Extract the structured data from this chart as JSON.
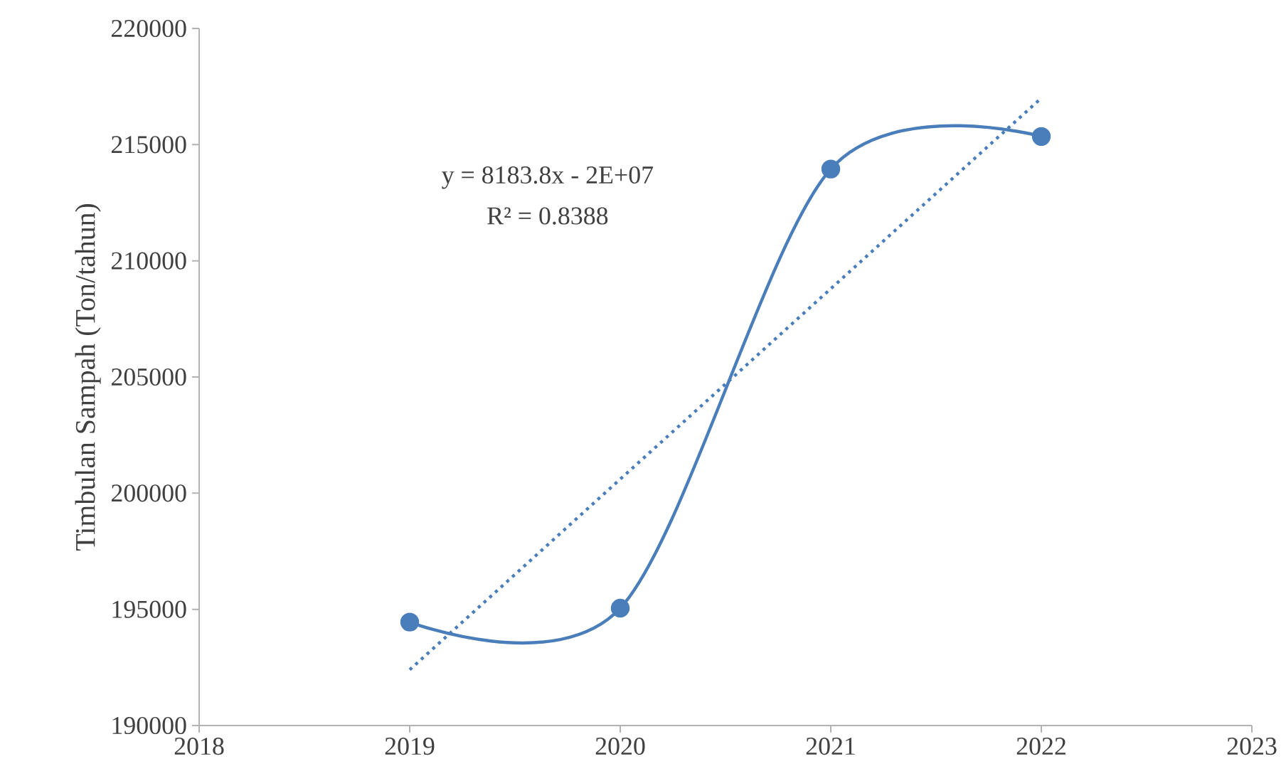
{
  "chart_data": {
    "type": "line",
    "ylabel": "Timbulan Sampah (Ton/tahun)",
    "annotations": [
      "y = 8183.8x - 2E+07",
      "R² = 0.8388"
    ],
    "series": [
      {
        "x": [
          2019,
          2020,
          2021,
          2022
        ],
        "values": [
          194450,
          195050,
          213950,
          215350
        ],
        "color": "#4a7ebb",
        "marker": "circle",
        "line_style": "solid"
      },
      {
        "x": [
          2019,
          2022
        ],
        "values": [
          192400,
          217000
        ],
        "color": "#4a7ebb",
        "marker": "none",
        "line_style": "dotted"
      }
    ],
    "xlim": [
      2018,
      2023
    ],
    "xticks": [
      2018,
      2019,
      2020,
      2021,
      2022,
      2023
    ],
    "ylim": [
      190000,
      220000
    ],
    "yticks": [
      190000,
      195000,
      200000,
      205000,
      210000,
      215000,
      220000
    ],
    "grid": false
  }
}
